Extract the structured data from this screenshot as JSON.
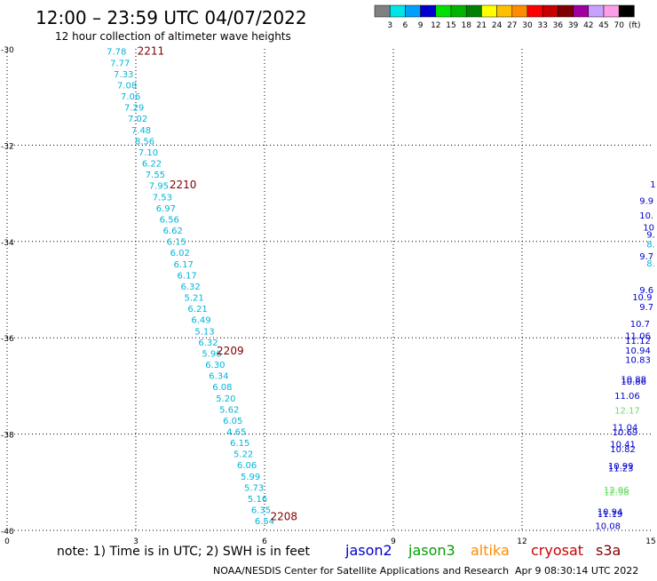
{
  "header": {
    "title": "12:00 – 23:59 UTC 04/07/2022",
    "subtitle": "12 hour collection of altimeter wave heights"
  },
  "legend": {
    "unit": "(ft)",
    "bins": [
      {
        "label": "3",
        "color": "#808080"
      },
      {
        "label": "6",
        "color": "#00e5e5"
      },
      {
        "label": "9",
        "color": "#00a0ff"
      },
      {
        "label": "12",
        "color": "#0000d0"
      },
      {
        "label": "15",
        "color": "#00e000"
      },
      {
        "label": "18",
        "color": "#00b400"
      },
      {
        "label": "21",
        "color": "#008000"
      },
      {
        "label": "24",
        "color": "#ffff00"
      },
      {
        "label": "27",
        "color": "#ffc000"
      },
      {
        "label": "30",
        "color": "#ff8c00"
      },
      {
        "label": "33",
        "color": "#ff0000"
      },
      {
        "label": "36",
        "color": "#c80000"
      },
      {
        "label": "39",
        "color": "#800000"
      },
      {
        "label": "42",
        "color": "#a000a0"
      },
      {
        "label": "45",
        "color": "#c8a0ff"
      },
      {
        "label": "70",
        "color": "#ff9ee8"
      },
      {
        "label": "",
        "color": "#000000"
      }
    ]
  },
  "footer": {
    "note": "note:  1) Time is in UTC;  2) SWH is in feet",
    "credit": "NOAA/NESDIS Center for Satellite Applications and Research",
    "timestamp": "Apr  9 08:30:14 UTC 2022",
    "satellites": [
      {
        "name": "jason2",
        "color": "#0000cc"
      },
      {
        "name": "jason3",
        "color": "#00a000"
      },
      {
        "name": "altika",
        "color": "#ff8c00"
      },
      {
        "name": "cryosat",
        "color": "#cc0000"
      },
      {
        "name": "s3a",
        "color": "#800000"
      }
    ]
  },
  "chart_data": {
    "type": "scatter",
    "x_ticks": [
      "0",
      "3",
      "6",
      "9",
      "12",
      "15"
    ],
    "y_ticks": [
      "-30",
      "-32",
      "-34",
      "-36",
      "-38",
      "-40"
    ],
    "xlim": [
      0,
      15
    ],
    "ylim": [
      -40,
      -30
    ],
    "grid": true,
    "track_series": [
      {
        "color": "#00b4d8",
        "start": [
          2.55,
          -30.05
        ],
        "end": [
          6.0,
          -39.8
        ],
        "values": [
          "7.78",
          "7.77",
          "7.33",
          "7.08",
          "7.06",
          "7.29",
          "7.02",
          "7.48",
          "8.56",
          "7.10",
          "6.22",
          "7.55",
          "7.95",
          "7.53",
          "6.97",
          "6.56",
          "6.62",
          "6.15",
          "6.02",
          "6.17",
          "6.17",
          "6.32",
          "5.21",
          "6.21",
          "6.49",
          "5.13",
          "6.32",
          "5.96",
          "6.30",
          "6.34",
          "6.08",
          "5.20",
          "5.62",
          "6.05",
          "4.65",
          "6.15",
          "5.22",
          "6.06",
          "5.99",
          "5.73",
          "5.16",
          "6.35",
          "6.54"
        ]
      }
    ],
    "time_labels": [
      {
        "text": "2211",
        "x": 3.35,
        "y": -30.03
      },
      {
        "text": "2210",
        "x": 4.1,
        "y": -32.8
      },
      {
        "text": "2209",
        "x": 5.2,
        "y": -36.25
      },
      {
        "text": "2208",
        "x": 6.45,
        "y": -39.7
      }
    ],
    "edge_values": [
      {
        "text": "9.6",
        "x": 14.9,
        "y": -35.0,
        "color": "#0000cc"
      },
      {
        "text": "10.9",
        "x": 14.8,
        "y": -35.15,
        "color": "#0000cc"
      },
      {
        "text": "9.7",
        "x": 14.9,
        "y": -35.35,
        "color": "#0000cc"
      },
      {
        "text": "10.7",
        "x": 14.75,
        "y": -35.7,
        "color": "#0000cc"
      },
      {
        "text": "11.06",
        "x": 14.7,
        "y": -35.95,
        "color": "#0000cc"
      },
      {
        "text": "11.12",
        "x": 14.7,
        "y": -36.05,
        "color": "#0000cc"
      },
      {
        "text": "10.94",
        "x": 14.7,
        "y": -36.25,
        "color": "#0000cc"
      },
      {
        "text": "10.83",
        "x": 14.7,
        "y": -36.45,
        "color": "#0000cc"
      },
      {
        "text": "10.88",
        "x": 14.6,
        "y": -36.85,
        "color": "#0000cc"
      },
      {
        "text": "10.86",
        "x": 14.6,
        "y": -36.9,
        "color": "#0000cc"
      },
      {
        "text": "11.06",
        "x": 14.45,
        "y": -37.2,
        "color": "#0000cc"
      },
      {
        "text": "12.17",
        "x": 14.45,
        "y": -37.5,
        "color": "#66dd66"
      },
      {
        "text": "11.04",
        "x": 14.4,
        "y": -37.85,
        "color": "#0000cc"
      },
      {
        "text": "10.69",
        "x": 14.4,
        "y": -37.95,
        "color": "#0000cc"
      },
      {
        "text": "10.41",
        "x": 14.35,
        "y": -38.2,
        "color": "#0000cc"
      },
      {
        "text": "10.82",
        "x": 14.35,
        "y": -38.3,
        "color": "#0000cc"
      },
      {
        "text": "10.99",
        "x": 14.3,
        "y": -38.65,
        "color": "#0000cc"
      },
      {
        "text": "11.23",
        "x": 14.3,
        "y": -38.7,
        "color": "#0000cc"
      },
      {
        "text": "12.96",
        "x": 14.2,
        "y": -39.15,
        "color": "#66dd66"
      },
      {
        "text": "12.98",
        "x": 14.2,
        "y": -39.2,
        "color": "#66dd66"
      },
      {
        "text": "10.94",
        "x": 14.05,
        "y": -39.6,
        "color": "#0000cc"
      },
      {
        "text": "11.19",
        "x": 14.05,
        "y": -39.65,
        "color": "#0000cc"
      },
      {
        "text": "10.08",
        "x": 14.0,
        "y": -39.9,
        "color": "#0000cc"
      },
      {
        "text": "9.7",
        "x": 14.9,
        "y": -34.3,
        "color": "#0000cc"
      },
      {
        "text": "9.9",
        "x": 14.9,
        "y": -33.15,
        "color": "#0000cc"
      },
      {
        "text": "10.",
        "x": 14.9,
        "y": -33.45,
        "color": "#0000cc"
      },
      {
        "text": "10",
        "x": 14.95,
        "y": -33.7,
        "color": "#0000cc"
      },
      {
        "text": "9.",
        "x": 15.0,
        "y": -33.85,
        "color": "#0000cc"
      },
      {
        "text": "8.",
        "x": 15.0,
        "y": -34.05,
        "color": "#00b4d8"
      },
      {
        "text": "8.",
        "x": 15.0,
        "y": -34.45,
        "color": "#00b4d8"
      },
      {
        "text": "1",
        "x": 15.05,
        "y": -32.8,
        "color": "#0000cc"
      }
    ]
  }
}
